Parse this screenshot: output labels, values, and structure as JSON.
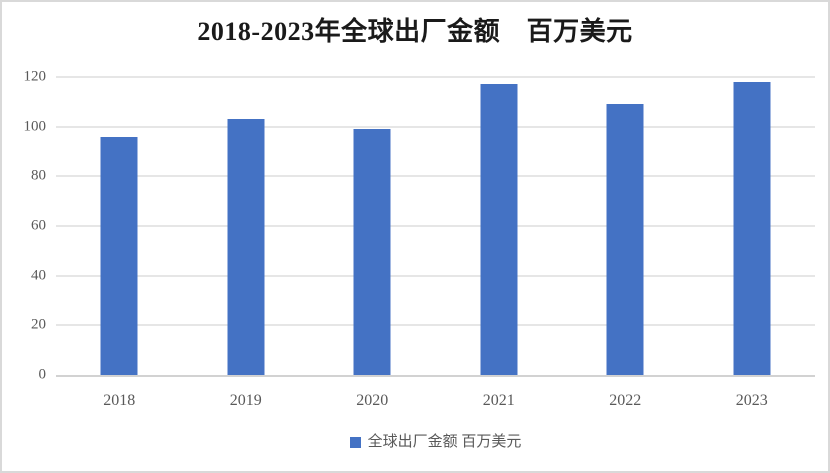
{
  "figure": {
    "background_color": "#ffffff",
    "border_color": "#d9d9d9"
  },
  "chart_data": {
    "type": "bar",
    "title": "2018-2023年全球出厂金额　百万美元",
    "categories": [
      "2018",
      "2019",
      "2020",
      "2021",
      "2022",
      "2023"
    ],
    "series": [
      {
        "name": "全球出厂金额 百万美元",
        "values": [
          96,
          103,
          99,
          117,
          109,
          118
        ]
      }
    ],
    "xlabel": "",
    "ylabel": "",
    "ylim": [
      0,
      120
    ],
    "yticks": [
      0,
      20,
      40,
      60,
      80,
      100,
      120
    ],
    "grid": true,
    "legend_position": "bottom",
    "bar_color": "#4472C4",
    "gridline_color": "#e6e6e6",
    "axis_line_color": "#d2d2d2",
    "tick_label_color": "#595959",
    "title_color": "#1a1a1a"
  },
  "legend": {
    "label": "全球出厂金额 百万美元",
    "marker_color": "#4472C4"
  }
}
